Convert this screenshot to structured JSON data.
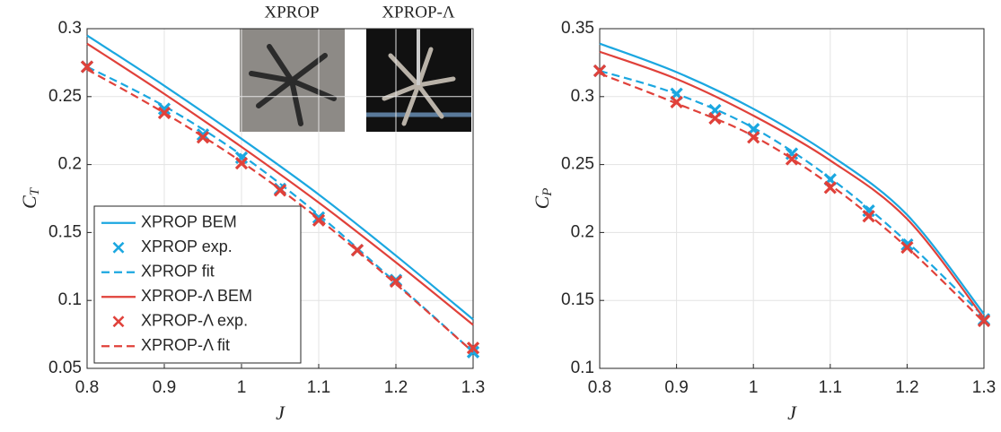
{
  "chart_data": [
    {
      "type": "line",
      "ylabel": "C",
      "ylabel_sub": "T",
      "xlabel": "J",
      "xlim": [
        0.8,
        1.3
      ],
      "xticks": [
        0.8,
        0.9,
        1,
        1.1,
        1.2,
        1.3
      ],
      "ylim": [
        0.05,
        0.3
      ],
      "yticks": [
        0.05,
        0.1,
        0.15,
        0.2,
        0.25,
        0.3
      ],
      "grid": true,
      "legend": "lower left",
      "annotations": [
        "XPROP",
        "XPROP-Λ"
      ],
      "series": [
        {
          "name": "XPROP BEM",
          "color": "#1ba7e0",
          "style": "solid",
          "x": [
            0.8,
            0.9,
            1,
            1.1,
            1.2,
            1.3
          ],
          "values": [
            0.295,
            0.258,
            0.219,
            0.178,
            0.133,
            0.086
          ]
        },
        {
          "name": "XPROP exp.",
          "color": "#1ba7e0",
          "style": "marker",
          "x": [
            0.8,
            0.9,
            0.95,
            1,
            1.05,
            1.1,
            1.15,
            1.2,
            1.3
          ],
          "values": [
            0.272,
            0.241,
            0.222,
            0.205,
            0.182,
            0.161,
            0.137,
            0.115,
            0.062
          ]
        },
        {
          "name": "XPROP fit",
          "color": "#1ba7e0",
          "style": "dashed",
          "x": [
            0.8,
            0.9,
            1,
            1.1,
            1.2,
            1.3
          ],
          "values": [
            0.272,
            0.243,
            0.207,
            0.163,
            0.113,
            0.062
          ]
        },
        {
          "name": "XPROP-Λ BEM",
          "color": "#e0413a",
          "style": "solid",
          "x": [
            0.8,
            0.9,
            1,
            1.1,
            1.2,
            1.3
          ],
          "values": [
            0.289,
            0.252,
            0.213,
            0.172,
            0.128,
            0.082
          ]
        },
        {
          "name": "XPROP-Λ exp.",
          "color": "#e0413a",
          "style": "marker",
          "x": [
            0.8,
            0.9,
            0.95,
            1,
            1.05,
            1.1,
            1.15,
            1.2,
            1.3
          ],
          "values": [
            0.272,
            0.238,
            0.22,
            0.201,
            0.181,
            0.159,
            0.137,
            0.114,
            0.065
          ]
        },
        {
          "name": "XPROP-Λ fit",
          "color": "#e0413a",
          "style": "dashed",
          "x": [
            0.8,
            0.9,
            1,
            1.1,
            1.2,
            1.3
          ],
          "values": [
            0.27,
            0.238,
            0.202,
            0.16,
            0.112,
            0.062
          ]
        }
      ]
    },
    {
      "type": "line",
      "ylabel": "C",
      "ylabel_sub": "P",
      "xlabel": "J",
      "xlim": [
        0.8,
        1.3
      ],
      "xticks": [
        0.8,
        0.9,
        1,
        1.1,
        1.2,
        1.3
      ],
      "ylim": [
        0.1,
        0.35
      ],
      "yticks": [
        0.1,
        0.15,
        0.2,
        0.25,
        0.3,
        0.35
      ],
      "grid": true,
      "series": [
        {
          "color": "#1ba7e0",
          "style": "solid",
          "x": [
            0.8,
            0.9,
            1,
            1.1,
            1.2,
            1.3
          ],
          "values": [
            0.339,
            0.318,
            0.291,
            0.257,
            0.213,
            0.14
          ]
        },
        {
          "color": "#1ba7e0",
          "style": "marker",
          "x": [
            0.8,
            0.9,
            0.95,
            1,
            1.05,
            1.1,
            1.15,
            1.2,
            1.3
          ],
          "values": [
            0.319,
            0.302,
            0.29,
            0.276,
            0.258,
            0.239,
            0.216,
            0.191,
            0.136
          ]
        },
        {
          "color": "#1ba7e0",
          "style": "dashed",
          "x": [
            0.8,
            0.9,
            1,
            1.1,
            1.2,
            1.3
          ],
          "values": [
            0.319,
            0.302,
            0.277,
            0.24,
            0.193,
            0.138
          ]
        },
        {
          "color": "#e0413a",
          "style": "solid",
          "x": [
            0.8,
            0.9,
            1,
            1.1,
            1.2,
            1.3
          ],
          "values": [
            0.333,
            0.313,
            0.286,
            0.253,
            0.21,
            0.137
          ]
        },
        {
          "color": "#e0413a",
          "style": "marker",
          "x": [
            0.8,
            0.9,
            0.95,
            1,
            1.05,
            1.1,
            1.15,
            1.2,
            1.3
          ],
          "values": [
            0.319,
            0.296,
            0.284,
            0.27,
            0.254,
            0.233,
            0.212,
            0.189,
            0.135
          ]
        },
        {
          "color": "#e0413a",
          "style": "dashed",
          "x": [
            0.8,
            0.9,
            1,
            1.1,
            1.2,
            1.3
          ],
          "values": [
            0.317,
            0.295,
            0.271,
            0.235,
            0.189,
            0.134
          ]
        }
      ]
    }
  ]
}
